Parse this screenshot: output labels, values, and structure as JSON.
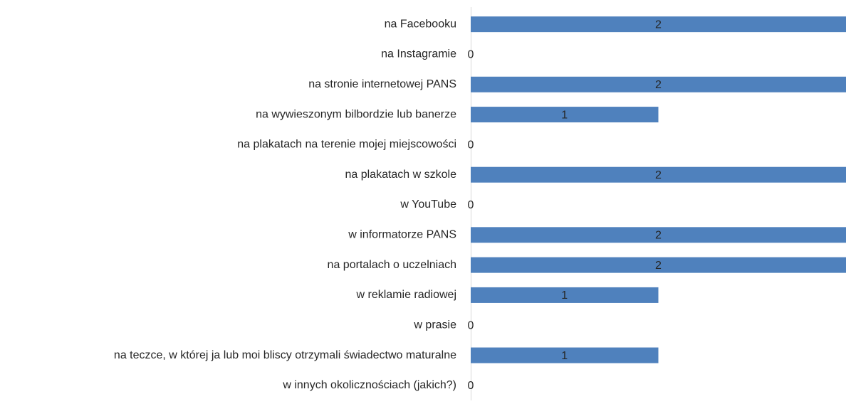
{
  "chart_data": {
    "type": "barh",
    "categories": [
      "na Facebooku",
      "na Instagramie",
      "na stronie internetowej PANS",
      "na wywieszonym bilbordzie lub banerze",
      "na plakatach na terenie mojej miejscowości",
      "na plakatach w szkole",
      "w YouTube",
      "w informatorze PANS",
      "na portalach o uczelniach",
      "w reklamie radiowej",
      "w prasie",
      "na teczce, w której ja lub moi bliscy otrzymali świadectwo maturalne",
      "w innych okolicznościach (jakich?)"
    ],
    "values": [
      2,
      0,
      2,
      1,
      0,
      2,
      0,
      2,
      2,
      1,
      0,
      1,
      0
    ],
    "color": "#4f81bd",
    "xlim": [
      0,
      2
    ]
  }
}
